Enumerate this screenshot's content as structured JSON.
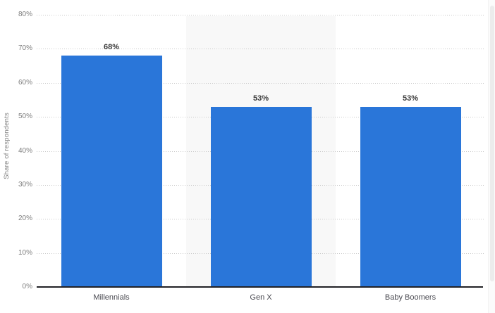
{
  "chart_data": {
    "type": "bar",
    "title": "",
    "categories": [
      "Millennials",
      "Gen X",
      "Baby Boomers"
    ],
    "values": [
      68,
      53,
      53
    ],
    "value_labels": [
      "68%",
      "53%",
      "53%"
    ],
    "xlabel": "",
    "ylabel": "Share of respondents",
    "ylim": [
      0,
      80
    ],
    "ytick_interval": 10,
    "ytick_labels": [
      "80%",
      "70%",
      "60%",
      "50%",
      "40%",
      "30%",
      "20%",
      "10%",
      "0%"
    ],
    "grid": "horizontal dotted gridlines",
    "legend_position": "none",
    "shaded_columns": [
      "Gen X"
    ],
    "colors": {
      "bar": "#2a76d9",
      "column_band": "#f8f8f8",
      "gridline": "#c9c9c9",
      "axis_baseline": "#212126",
      "tick_label": "#7e7e7e",
      "value_label": "#3a3a3a",
      "category_label": "#4b4b52",
      "background": "#ffffff"
    }
  }
}
